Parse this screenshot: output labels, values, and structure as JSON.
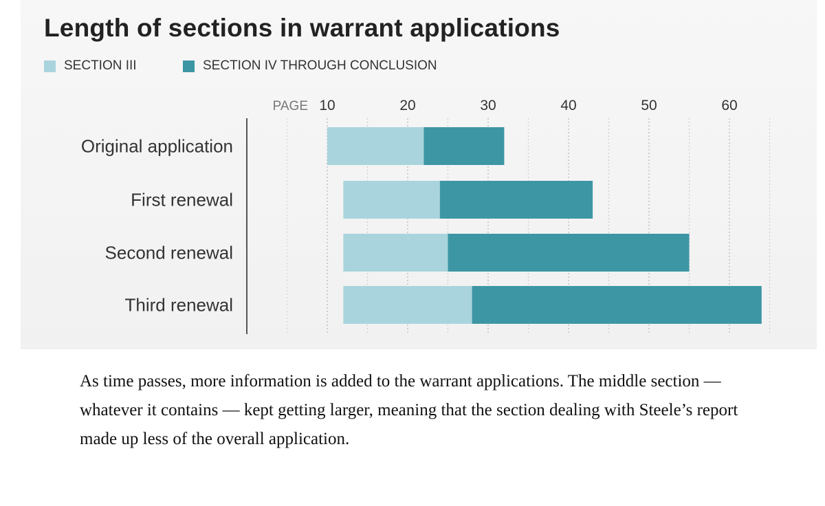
{
  "chart_data": {
    "type": "bar",
    "stacked": true,
    "orientation": "horizontal",
    "title": "Length of sections in warrant applications",
    "axis_prefix": "PAGE",
    "xticks": [
      10,
      20,
      30,
      40,
      50,
      60
    ],
    "xlim": [
      5,
      65
    ],
    "grid": true,
    "legend_position": "top-left",
    "categories": [
      "Original application",
      "First renewal",
      "Second renewal",
      "Third renewal"
    ],
    "series": [
      {
        "name": "SECTION III",
        "color": "#a9d4dd",
        "starts": [
          10,
          12,
          12,
          12
        ],
        "ends": [
          22,
          24,
          25,
          28
        ]
      },
      {
        "name": "SECTION IV THROUGH CONCLUSION",
        "color": "#3d96a4",
        "starts": [
          22,
          24,
          25,
          28
        ],
        "ends": [
          32,
          43,
          55,
          64
        ]
      }
    ]
  },
  "caption": "As time passes, more information is added to the warrant applications. The middle section — whatever it contains — kept getting larger, meaning that the section dealing with Steele’s report made up less of the overall application."
}
